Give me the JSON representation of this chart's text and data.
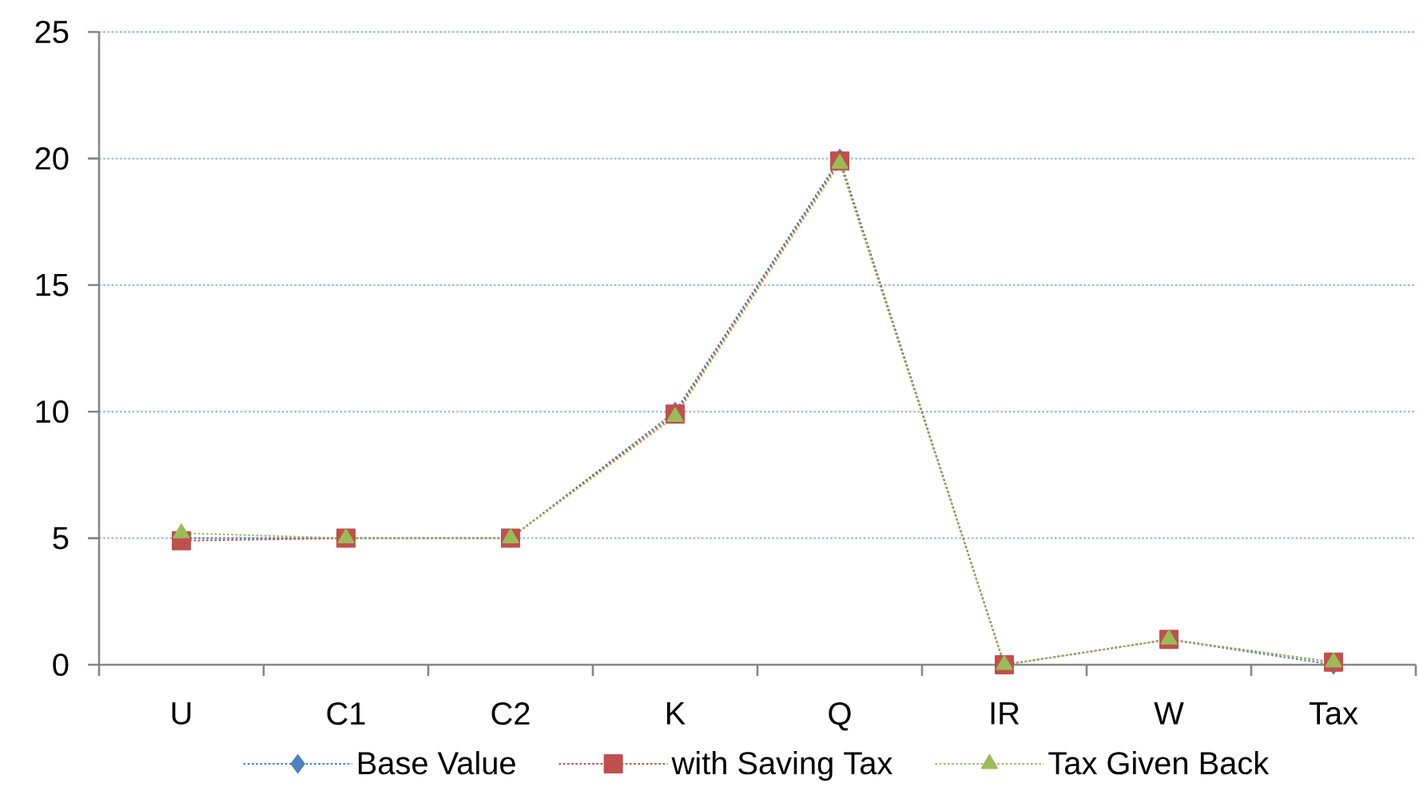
{
  "chart_data": {
    "type": "line",
    "categories": [
      "U",
      "C1",
      "C2",
      "K",
      "Q",
      "IR",
      "W",
      "Tax"
    ],
    "series": [
      {
        "name": "Base Value",
        "color": "#4f81bd",
        "marker": "diamond",
        "values": [
          5,
          5,
          5,
          10,
          20,
          0,
          1,
          0
        ]
      },
      {
        "name": "with Saving Tax",
        "color": "#c0504d",
        "marker": "square",
        "values": [
          4.9,
          5,
          5,
          9.9,
          19.9,
          0,
          1,
          0.1
        ]
      },
      {
        "name": "Tax Given Back",
        "color": "#9bbb59",
        "marker": "triangle",
        "values": [
          5.2,
          5,
          5,
          9.8,
          19.8,
          0,
          1,
          0.1
        ]
      }
    ],
    "ylim": [
      0,
      25
    ],
    "yticks": [
      0,
      5,
      10,
      15,
      20,
      25
    ],
    "grid": "y",
    "legend": "bottom",
    "line_style": "dotted"
  }
}
